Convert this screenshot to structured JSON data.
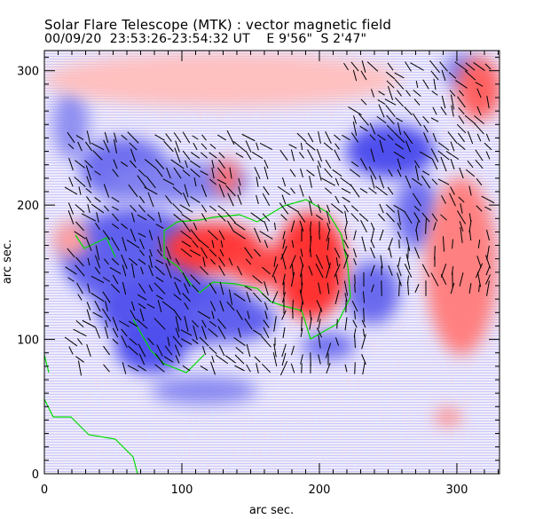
{
  "header": {
    "title": "Solar Flare Telescope (MTK) : vector magnetic field",
    "subtitle": "00/09/20  23:53:26-23:54:32 UT    E 9'56\"  S 2'47\""
  },
  "chart_data": {
    "type": "heatmap",
    "title": "Solar Flare Telescope (MTK) : vector magnetic field",
    "subtitle": "00/09/20  23:53:26-23:54:32 UT    E 9'56\"  S 2'47\"",
    "xlabel": "arc sec.",
    "ylabel": "arc sec.",
    "xlim": [
      0,
      331
    ],
    "ylim": [
      0,
      315
    ],
    "xticks": [
      0,
      100,
      200,
      300
    ],
    "yticks": [
      0,
      100,
      200,
      300
    ],
    "xtick_labels": [
      "0",
      "100",
      "200",
      "300"
    ],
    "ytick_labels": [
      "0",
      "100",
      "200",
      "300"
    ],
    "colors": {
      "positive": "#ff4040",
      "negative": "#4040ff",
      "contour": "#00dd00",
      "vectors": "#000000"
    }
  }
}
